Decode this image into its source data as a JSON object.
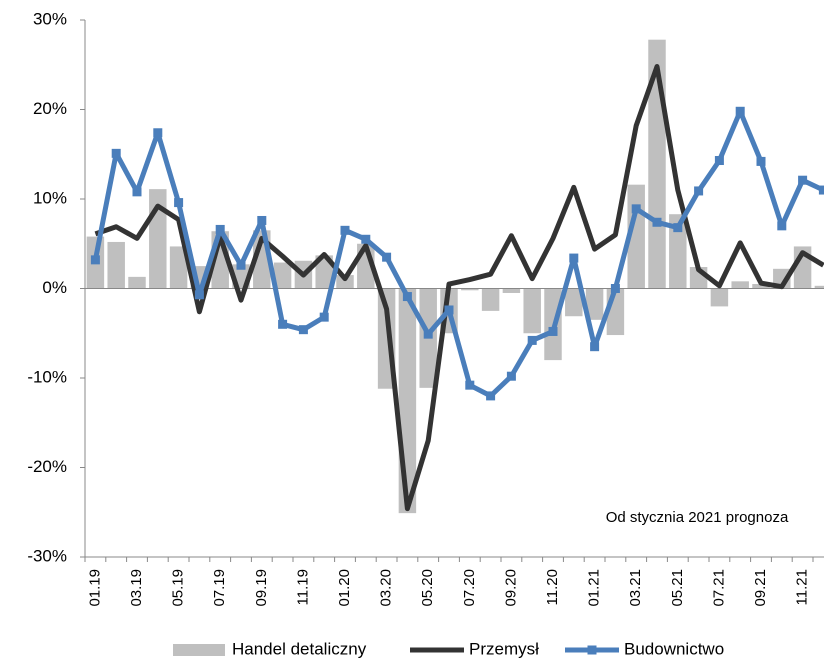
{
  "chart_data": {
    "type": "bar-line",
    "annotation": "Od stycznia 2021 prognoza",
    "categories": [
      "01.19",
      null,
      "03.19",
      null,
      "05.19",
      null,
      "07.19",
      null,
      "09.19",
      null,
      "11.19",
      null,
      "01.20",
      null,
      "03.20",
      null,
      "05.20",
      null,
      "07.20",
      null,
      "09.20",
      null,
      "11.20",
      null,
      "01.21",
      null,
      "03.21",
      null,
      "05.21",
      null,
      "07.21",
      null,
      "09.21",
      null,
      "11.21",
      null
    ],
    "series": [
      {
        "name": "Handel detaliczny",
        "type": "bar",
        "color": "#bfbfbf",
        "values": [
          5.8,
          5.2,
          1.3,
          11.1,
          4.7,
          2.5,
          6.4,
          2.7,
          6.5,
          2.9,
          3.1,
          3.7,
          1.5,
          5.0,
          -11.2,
          -25.1,
          -11.1,
          -5.0,
          -0.2,
          -2.5,
          -0.5,
          -5.0,
          -8.0,
          -3.1,
          -3.5,
          -5.2,
          11.6,
          27.8,
          8.3,
          2.4,
          -2.0,
          0.8,
          0.5,
          2.2,
          4.7,
          0.3
        ]
      },
      {
        "name": "Przemysł",
        "type": "line",
        "color": "#333333",
        "values": [
          6.1,
          6.9,
          5.6,
          9.2,
          7.7,
          -2.6,
          5.8,
          -1.3,
          5.6,
          3.6,
          1.5,
          3.8,
          1.1,
          4.8,
          -2.3,
          -24.6,
          -17.0,
          0.5,
          1.0,
          1.6,
          5.9,
          1.1,
          5.6,
          11.3,
          4.4,
          6.0,
          18.2,
          24.8,
          11.0,
          2.1,
          0.3,
          5.1,
          0.6,
          0.2,
          4.0,
          2.6
        ]
      },
      {
        "name": "Budownictwo",
        "type": "line",
        "marker": "square",
        "color": "#4a7ebb",
        "values": [
          3.2,
          15.1,
          10.8,
          17.4,
          9.6,
          -0.7,
          6.6,
          2.6,
          7.6,
          -4.0,
          -4.6,
          -3.2,
          6.5,
          5.5,
          3.5,
          -0.9,
          -5.1,
          -2.4,
          -10.8,
          -12.0,
          -9.8,
          -5.8,
          -4.8,
          3.4,
          -6.5,
          0.0,
          8.9,
          7.4,
          6.8,
          10.9,
          14.3,
          19.8,
          14.2,
          7.0,
          12.1,
          11.0
        ]
      }
    ],
    "ylim": [
      -30,
      30
    ],
    "yticks": [
      {
        "value": -30,
        "label": "-30%"
      },
      {
        "value": -20,
        "label": "-20%"
      },
      {
        "value": -10,
        "label": "-10%"
      },
      {
        "value": 0,
        "label": "0%"
      },
      {
        "value": 10,
        "label": "10%"
      },
      {
        "value": 20,
        "label": "20%"
      },
      {
        "value": 30,
        "label": "30%"
      }
    ],
    "grid": false
  }
}
